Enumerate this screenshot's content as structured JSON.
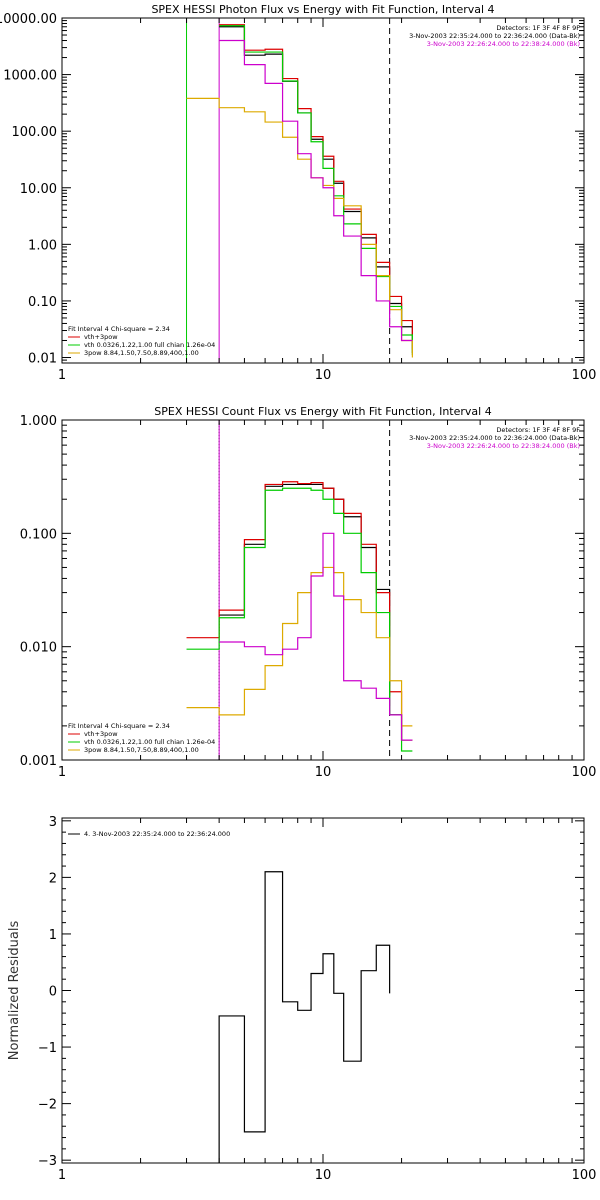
{
  "chart_data": [
    {
      "type": "line",
      "title": "SPEX HESSI Photon Flux vs Energy with Fit Function, Interval 4",
      "xlabel": "",
      "ylabel": "",
      "xscale": "log",
      "yscale": "log",
      "xlim": [
        1,
        100
      ],
      "ylim": [
        0.008,
        10000
      ],
      "xticks": [
        {
          "v": 1,
          "label": "1"
        },
        {
          "v": 10,
          "label": "10"
        },
        {
          "v": 100,
          "label": "100"
        }
      ],
      "yticks": [
        {
          "v": 10000,
          "label": "10000.00"
        },
        {
          "v": 1000,
          "label": "1000.00"
        },
        {
          "v": 100,
          "label": "100.00"
        },
        {
          "v": 10,
          "label": "10.00"
        },
        {
          "v": 1,
          "label": "1.00"
        },
        {
          "v": 0.1,
          "label": "0.10"
        },
        {
          "v": 0.01,
          "label": "0.01"
        }
      ],
      "info_lines": [
        "Detectors: 1F 3F 4F 8F 9F",
        "3-Nov-2003 22:35:24.000 to 22:36:24.000 (Data-Bk)",
        "3-Nov-2003 22:26:24.000 to 22:38:24.000 (Bk)"
      ],
      "info_colors": [
        "#000000",
        "#000000",
        "#cc00cc"
      ],
      "legend_lines": [
        "Fit Interval 4   Chi-square = 2.34",
        "vth+3pow",
        "vth 0.0326,1.22,1.00  full chian 1.26e-04",
        "3pow 8.84,1.50,7.50,8.89,400,1.00"
      ],
      "legend_colors": [
        "#000000",
        "#dd0000",
        "#00cc00",
        "#ddaa00"
      ],
      "vlines": [
        {
          "x": 3.0,
          "color": "#00cc00",
          "dash": ""
        },
        {
          "x": 4.0,
          "color": "#cc00cc",
          "dash": ""
        },
        {
          "x": 18.0,
          "color": "#000000",
          "dash": "6,4"
        }
      ],
      "edges": [
        3,
        4,
        5,
        6,
        7,
        8,
        9,
        10,
        11,
        12,
        14,
        16,
        18,
        20,
        22
      ],
      "series": [
        {
          "name": "data",
          "color": "#000000",
          "start": 1,
          "values": [
            7000,
            2200,
            2300,
            760,
            210,
            72,
            32,
            12,
            3.8,
            1.3,
            0.4,
            0.09,
            0.035,
            0.012
          ]
        },
        {
          "name": "vth+3pow",
          "color": "#dd0000",
          "start": 1,
          "values": [
            7600,
            2700,
            2800,
            850,
            250,
            80,
            36,
            13,
            4.2,
            1.5,
            0.48,
            0.12,
            0.045,
            0.014
          ]
        },
        {
          "name": "vth",
          "color": "#00cc00",
          "start": 1,
          "values": [
            7300,
            2500,
            2500,
            770,
            210,
            65,
            22,
            7.2,
            2.3,
            0.85,
            0.27,
            0.08,
            0.025,
            0.011
          ]
        },
        {
          "name": "3pow",
          "color": "#ddaa00",
          "start": 0,
          "values": [
            380,
            260,
            220,
            145,
            78,
            32,
            15,
            11,
            6.5,
            4.8,
            1.0,
            0.28,
            0.07,
            0.02,
            0.01
          ]
        },
        {
          "name": "bk",
          "color": "#cc00cc",
          "start": 1,
          "values": [
            4000,
            1500,
            700,
            150,
            40,
            15,
            10,
            3.2,
            1.4,
            0.28,
            0.1,
            0.035,
            0.02
          ]
        }
      ]
    },
    {
      "type": "line",
      "title": "SPEX HESSI Count Flux vs Energy with Fit Function, Interval 4",
      "xlabel": "",
      "ylabel": "",
      "xscale": "log",
      "yscale": "log",
      "xlim": [
        1,
        100
      ],
      "ylim": [
        0.001,
        1.0
      ],
      "xticks": [
        {
          "v": 1,
          "label": "1"
        },
        {
          "v": 10,
          "label": "10"
        },
        {
          "v": 100,
          "label": "100"
        }
      ],
      "yticks": [
        {
          "v": 1.0,
          "label": "1.000"
        },
        {
          "v": 0.1,
          "label": "0.100"
        },
        {
          "v": 0.01,
          "label": "0.010"
        },
        {
          "v": 0.001,
          "label": "0.001"
        }
      ],
      "info_lines": [
        "Detectors: 1F 3F 4F 8F 9F",
        "3-Nov-2003 22:35:24.000 to 22:36:24.000 (Data-Bk)",
        "3-Nov-2003 22:26:24.000 to 22:38:24.000 (Bk)"
      ],
      "info_colors": [
        "#000000",
        "#000000",
        "#cc00cc"
      ],
      "legend_lines": [
        "Fit Interval 4   Chi-square = 2.34",
        "vth+3pow",
        "vth 0.0326,1.22,1.00  full chian 1.26e-04",
        "3pow 8.84,1.50,7.50,8.89,400,1.00"
      ],
      "legend_colors": [
        "#000000",
        "#dd0000",
        "#00cc00",
        "#ddaa00"
      ],
      "vlines": [
        {
          "x": 4.0,
          "color": "#000000",
          "dash": "1,2"
        },
        {
          "x": 4.0,
          "color": "#cc00cc",
          "dash": ""
        },
        {
          "x": 18.0,
          "color": "#000000",
          "dash": "6,4"
        }
      ],
      "edges": [
        3,
        4,
        5,
        6,
        7,
        8,
        9,
        10,
        11,
        12,
        14,
        16,
        18,
        20,
        22
      ],
      "series": [
        {
          "name": "data",
          "color": "#000000",
          "start": 1,
          "values": [
            0.019,
            0.08,
            0.26,
            0.27,
            0.27,
            0.27,
            0.25,
            0.2,
            0.14,
            0.075,
            0.032,
            0.0025,
            0.0015
          ]
        },
        {
          "name": "vth+3pow",
          "color": "#dd0000",
          "start": 0,
          "values": [
            0.012,
            0.021,
            0.088,
            0.27,
            0.285,
            0.275,
            0.28,
            0.25,
            0.2,
            0.15,
            0.08,
            0.03,
            0.004,
            0.0015
          ]
        },
        {
          "name": "vth",
          "color": "#00cc00",
          "start": 0,
          "values": [
            0.0095,
            0.018,
            0.075,
            0.24,
            0.25,
            0.25,
            0.24,
            0.2,
            0.15,
            0.1,
            0.045,
            0.02,
            0.0025,
            0.0012
          ]
        },
        {
          "name": "3pow",
          "color": "#ddaa00",
          "start": 0,
          "values": [
            0.0029,
            0.0025,
            0.0042,
            0.0068,
            0.016,
            0.03,
            0.045,
            0.05,
            0.045,
            0.026,
            0.02,
            0.012,
            0.005,
            0.002
          ]
        },
        {
          "name": "bk",
          "color": "#cc00cc",
          "start": 1,
          "values": [
            0.011,
            0.01,
            0.0085,
            0.0095,
            0.012,
            0.042,
            0.1,
            0.028,
            0.005,
            0.0043,
            0.0035,
            0.0025,
            0.0015
          ]
        }
      ]
    },
    {
      "type": "line",
      "title": "",
      "xlabel": "",
      "ylabel": "Normalized Residuals",
      "xscale": "log",
      "yscale": "linear",
      "xlim": [
        1,
        100
      ],
      "ylim": [
        -3.05,
        3.05
      ],
      "xticks": [
        {
          "v": 1,
          "label": "1"
        },
        {
          "v": 10,
          "label": "10"
        },
        {
          "v": 100,
          "label": "100"
        }
      ],
      "yticks": [
        {
          "v": 3,
          "label": "3"
        },
        {
          "v": 2,
          "label": "2"
        },
        {
          "v": 1,
          "label": "1"
        },
        {
          "v": 0,
          "label": "0"
        },
        {
          "v": -1,
          "label": "−1"
        },
        {
          "v": -2,
          "label": "−2"
        },
        {
          "v": -3,
          "label": "−3"
        }
      ],
      "info_lines": [],
      "info_colors": [],
      "legend_lines": [
        "4.  3-Nov-2003 22:35:24.000 to 22:36:24.000"
      ],
      "legend_colors": [
        "#000000"
      ],
      "legend_pos": "top-left",
      "vlines": [],
      "edges": [
        4,
        5,
        6,
        7,
        8,
        9,
        10,
        11,
        12,
        14,
        16,
        18
      ],
      "series": [
        {
          "name": "residuals",
          "color": "#000000",
          "start": 0,
          "values": [
            -0.45,
            -2.5,
            2.1,
            -0.2,
            -0.35,
            0.3,
            0.65,
            -0.05,
            -1.25,
            0.35,
            0.8,
            -0.05
          ],
          "drop_to_bottom": true
        }
      ]
    }
  ]
}
